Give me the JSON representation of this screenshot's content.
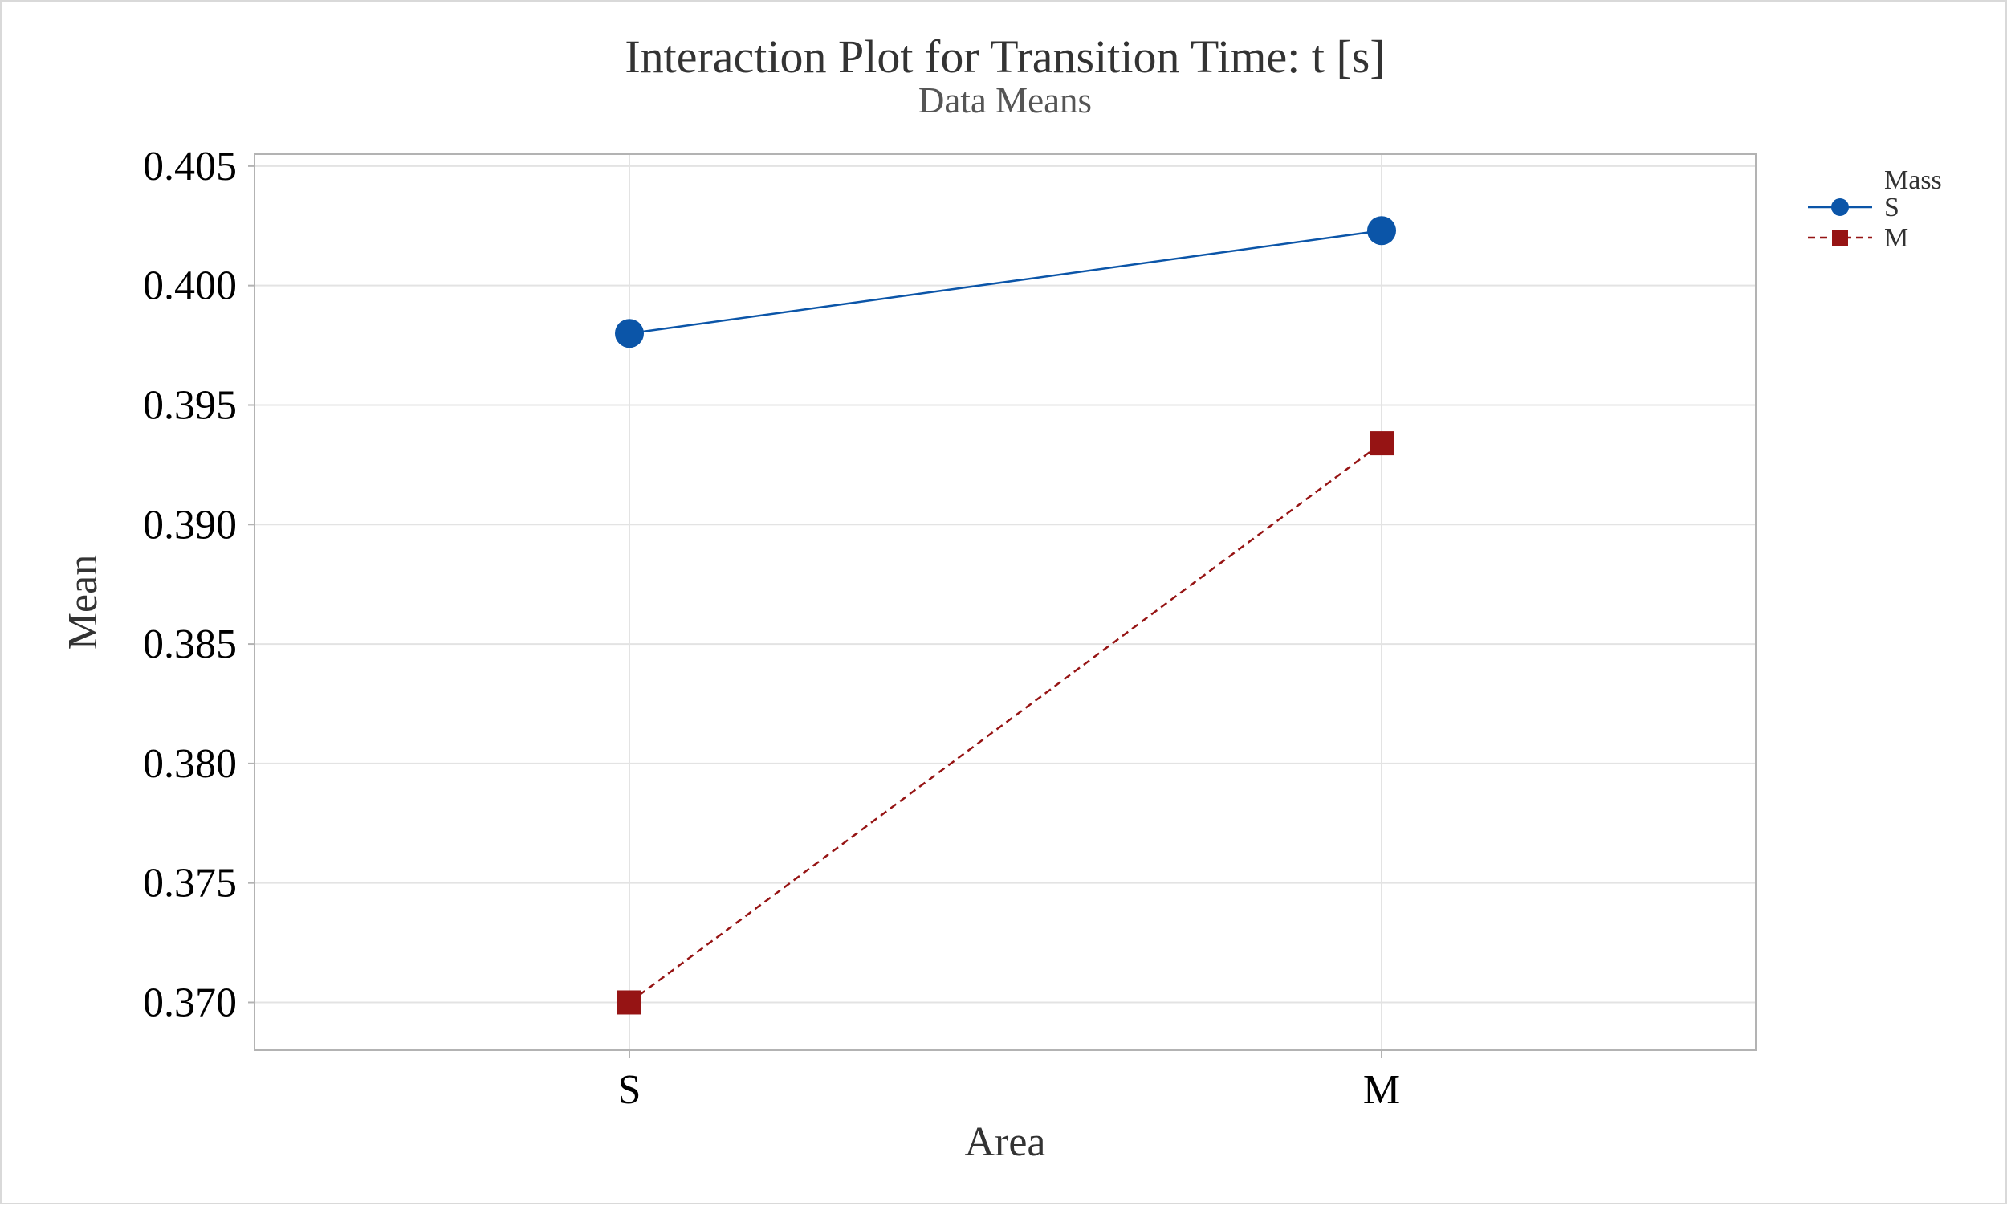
{
  "chart_data": {
    "type": "line",
    "title": "Interaction Plot for Transition Time: t [s]",
    "subtitle": "Data Means",
    "xlabel": "Area",
    "ylabel": "Mean",
    "categories": [
      "S",
      "M"
    ],
    "ylim": [
      0.368,
      0.4055
    ],
    "yticks": [
      "0.370",
      "0.375",
      "0.380",
      "0.385",
      "0.390",
      "0.395",
      "0.400",
      "0.405"
    ],
    "ytick_values": [
      0.37,
      0.375,
      0.38,
      0.385,
      0.39,
      0.395,
      0.4,
      0.405
    ],
    "grid": true,
    "legend": {
      "title": "Mass",
      "placement": "top-right, outside plot"
    },
    "series": [
      {
        "name": "S",
        "values": [
          0.398,
          0.4023
        ],
        "color": "#0b55a8",
        "marker": "circle",
        "line": "solid"
      },
      {
        "name": "M",
        "values": [
          0.37,
          0.3934
        ],
        "color": "#961414",
        "marker": "square",
        "line": "dashed"
      }
    ]
  }
}
